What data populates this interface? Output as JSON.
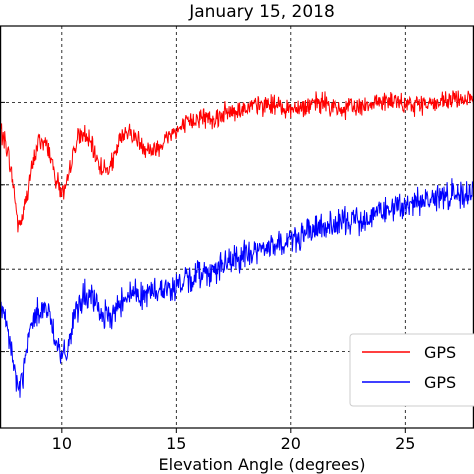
{
  "chart_data": {
    "type": "line",
    "title": "January 15, 2018",
    "xlabel": "Elevation Angle (degrees)",
    "ylabel": "",
    "xlim": [
      7.3,
      28
    ],
    "ylim": [
      0,
      1
    ],
    "x_ticks": [
      10,
      15,
      20,
      25
    ],
    "x_tick_labels": [
      "10",
      "15",
      "20",
      "25"
    ],
    "y_gridlines": [
      0.19,
      0.395,
      0.605,
      0.81
    ],
    "grid": true,
    "grid_style": "dashed",
    "legend_position": "bottom-right",
    "series": [
      {
        "name": "GPS",
        "color": "#ff0000",
        "x": [
          7.3,
          7.6,
          7.9,
          8.1,
          8.3,
          8.6,
          9.0,
          9.4,
          9.7,
          10.0,
          10.2,
          10.4,
          10.7,
          11.0,
          11.3,
          11.7,
          12.0,
          12.3,
          12.5,
          12.8,
          13.2,
          13.6,
          14.0,
          14.4,
          14.8,
          15.2,
          15.6,
          16.0,
          16.5,
          17.0,
          17.5,
          18.0,
          18.5,
          19.0,
          19.5,
          20.0,
          20.5,
          21.0,
          21.5,
          22.0,
          22.5,
          23.0,
          23.5,
          24.0,
          24.5,
          25.0,
          25.5,
          26.0,
          26.5,
          27.0,
          27.5,
          28.0
        ],
        "y": [
          0.745,
          0.7,
          0.6,
          0.5,
          0.525,
          0.62,
          0.72,
          0.7,
          0.63,
          0.585,
          0.59,
          0.66,
          0.72,
          0.73,
          0.7,
          0.65,
          0.64,
          0.67,
          0.71,
          0.74,
          0.725,
          0.7,
          0.69,
          0.71,
          0.735,
          0.745,
          0.76,
          0.775,
          0.77,
          0.78,
          0.79,
          0.795,
          0.8,
          0.805,
          0.8,
          0.795,
          0.8,
          0.805,
          0.81,
          0.79,
          0.795,
          0.8,
          0.81,
          0.815,
          0.81,
          0.8,
          0.805,
          0.81,
          0.805,
          0.815,
          0.82,
          0.815
        ]
      },
      {
        "name": "GPS",
        "color": "#0000ff",
        "x": [
          7.3,
          7.6,
          7.9,
          8.1,
          8.3,
          8.6,
          9.0,
          9.4,
          9.7,
          10.0,
          10.2,
          10.4,
          10.7,
          11.0,
          11.3,
          11.7,
          12.0,
          12.3,
          12.5,
          12.8,
          13.2,
          13.6,
          14.0,
          14.4,
          14.8,
          15.2,
          15.6,
          16.0,
          16.5,
          17.0,
          17.5,
          18.0,
          18.5,
          19.0,
          19.5,
          20.0,
          20.5,
          21.0,
          21.5,
          22.0,
          22.5,
          23.0,
          23.5,
          24.0,
          24.5,
          25.0,
          25.5,
          26.0,
          26.5,
          27.0,
          27.5,
          28.0
        ],
        "y": [
          0.3,
          0.25,
          0.16,
          0.09,
          0.13,
          0.24,
          0.3,
          0.29,
          0.23,
          0.175,
          0.18,
          0.24,
          0.3,
          0.33,
          0.32,
          0.29,
          0.27,
          0.29,
          0.31,
          0.33,
          0.34,
          0.33,
          0.34,
          0.35,
          0.345,
          0.36,
          0.37,
          0.385,
          0.39,
          0.405,
          0.415,
          0.43,
          0.44,
          0.45,
          0.455,
          0.47,
          0.48,
          0.49,
          0.5,
          0.505,
          0.515,
          0.52,
          0.53,
          0.54,
          0.545,
          0.55,
          0.56,
          0.57,
          0.575,
          0.58,
          0.585,
          0.59
        ]
      }
    ]
  }
}
